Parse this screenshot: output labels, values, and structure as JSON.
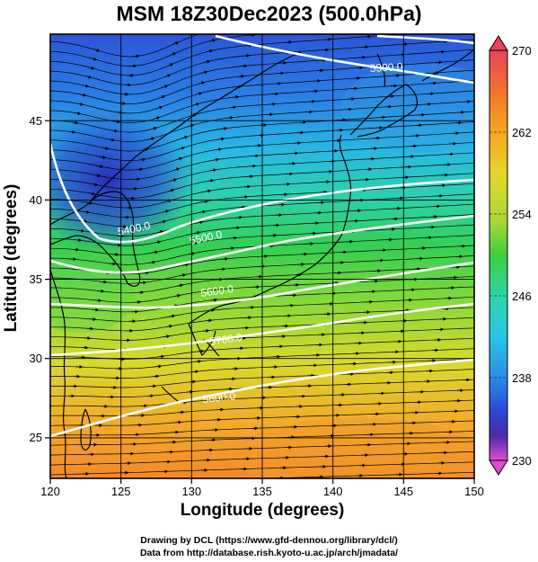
{
  "title": "MSM 18Z30Dec2023 (500.0hPa)",
  "xlabel": "Longitude (degrees)",
  "ylabel": "Latitude  (degrees)",
  "credits": [
    "Drawing by DCL (https://www.gfd-dennou.org/library/dcl/)",
    "Data from http://database.rish.kyoto-u.ac.jp/arch/jmadata/"
  ],
  "map": {
    "lon_range": [
      120,
      150
    ],
    "lat_range": [
      22.4,
      47.6
    ],
    "x_ticks": [
      "120",
      "125",
      "130",
      "135",
      "140",
      "145",
      "150"
    ],
    "y_ticks": [
      "25",
      "30",
      "35",
      "40",
      "45"
    ],
    "grid": true,
    "fill_variable": "temperature (K)",
    "vectors": "streamlines of wind",
    "contour_labels": [
      "5300.0",
      "5400.0",
      "5500.0",
      "5600.0",
      "5700.0",
      "5800.0"
    ],
    "colorbar": {
      "ticks": [
        "270",
        "262",
        "254",
        "246",
        "238",
        "230"
      ],
      "colors": [
        "#e8435a",
        "#f1742b",
        "#f5a623",
        "#e6d629",
        "#a6d83a",
        "#3ccf3c",
        "#2fd3a8",
        "#28c6e6",
        "#2d8ae6",
        "#2b48d6",
        "#4b2aa8",
        "#a63ab8",
        "#e14bd1"
      ]
    }
  }
}
